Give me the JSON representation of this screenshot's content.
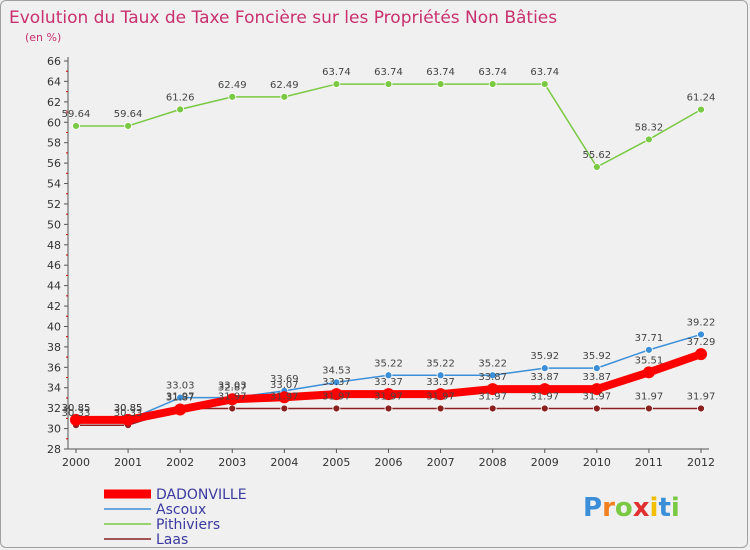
{
  "chart_data": {
    "type": "line",
    "title": "Evolution du Taux de Taxe Foncière sur les Propriétés Non Bâties",
    "subtitle": "(en %)",
    "xlabel": "",
    "ylabel": "",
    "ylim": [
      28,
      66
    ],
    "ytick_step": 2,
    "grid": false,
    "legend_position": "bottom-left",
    "x": [
      "2000",
      "2001",
      "2002",
      "2003",
      "2004",
      "2005",
      "2006",
      "2007",
      "2008",
      "2009",
      "2010",
      "2011",
      "2012"
    ],
    "series": [
      {
        "name": "DADONVILLE",
        "color": "#ff0000",
        "values": [
          30.85,
          30.85,
          31.87,
          32.87,
          33.07,
          33.37,
          33.37,
          33.37,
          33.87,
          33.87,
          33.87,
          35.51,
          37.29
        ],
        "labels": [
          "30.85",
          "30.85",
          "31.87",
          "32.87",
          "33.07",
          "33.37",
          "33.37",
          "33.37",
          "33.87",
          "33.87",
          "33.87",
          "35.51",
          "37.29"
        ]
      },
      {
        "name": "Ascoux",
        "color": "#3a8fd8",
        "values": [
          30.85,
          30.85,
          33.03,
          33.03,
          33.69,
          34.53,
          35.22,
          35.22,
          35.22,
          35.92,
          35.92,
          37.71,
          39.22
        ],
        "labels": [
          "30.85",
          "30.85",
          "33.03",
          "33.03",
          "33.69",
          "34.53",
          "35.22",
          "35.22",
          "35.22",
          "35.92",
          "35.92",
          "37.71",
          "39.22"
        ]
      },
      {
        "name": "Pithiviers",
        "color": "#7ac943",
        "values": [
          59.64,
          59.64,
          61.26,
          62.49,
          62.49,
          63.74,
          63.74,
          63.74,
          63.74,
          63.74,
          55.62,
          58.32,
          61.24
        ],
        "labels": [
          "59.64",
          "59.64",
          "61.26",
          "62.49",
          "62.49",
          "63.74",
          "63.74",
          "63.74",
          "63.74",
          "63.74",
          "55.62",
          "58.32",
          "61.24"
        ]
      },
      {
        "name": "Laas",
        "color": "#8b2020",
        "values": [
          30.33,
          30.33,
          31.97,
          31.97,
          31.97,
          31.97,
          31.97,
          31.97,
          31.97,
          31.97,
          31.97,
          31.97,
          31.97
        ],
        "labels": [
          "30.33",
          "30.33",
          "31.97",
          "31.97",
          "31.97",
          "31.97",
          "31.97",
          "31.97",
          "31.97",
          "31.97",
          "31.97",
          "31.97",
          "31.97"
        ]
      }
    ]
  },
  "logo": {
    "text": "Proxiti",
    "letters": [
      {
        "ch": "P",
        "color": "#3a8fd8"
      },
      {
        "ch": "r",
        "color": "#f08020"
      },
      {
        "ch": "o",
        "color": "#7ac943"
      },
      {
        "ch": "x",
        "color": "#e03030"
      },
      {
        "ch": "i",
        "color": "#f0c000"
      },
      {
        "ch": "t",
        "color": "#3a8fd8"
      },
      {
        "ch": "i",
        "color": "#7ac943"
      }
    ]
  }
}
